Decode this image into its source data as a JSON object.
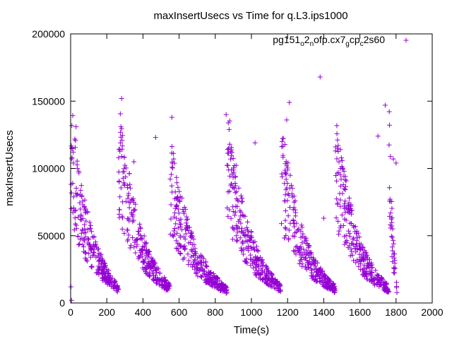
{
  "chart_data": {
    "type": "scatter",
    "title": "maxInsertUsecs vs Time for q.L3.ips1000",
    "xlabel": "Time(s)",
    "ylabel": "maxInsertUsecs",
    "xlim": [
      0,
      2000
    ],
    "ylim": [
      0,
      200000
    ],
    "xticks": [
      0,
      200,
      400,
      600,
      800,
      1000,
      1200,
      1400,
      1600,
      1800,
      2000
    ],
    "yticks": [
      0,
      50000,
      100000,
      150000,
      200000
    ],
    "xtick_labels": [
      "0",
      "200",
      "400",
      "600",
      "800",
      "1000",
      "1200",
      "1400",
      "1600",
      "1800",
      "2000"
    ],
    "ytick_labels": [
      "0",
      "50000",
      "100000",
      "150000",
      "200000"
    ],
    "legend_position": "top-right",
    "marker": "+",
    "color": "#9400d3",
    "series": [
      {
        "name": "pg151_o2_nofp.cx7_gcp_c2s60",
        "name_parts": [
          {
            "text": "pg151",
            "sub": false
          },
          {
            "text": "o",
            "sub": true
          },
          {
            "text": "2",
            "sub": false
          },
          {
            "text": "n",
            "sub": true
          },
          {
            "text": "ofp.cx7",
            "sub": false
          },
          {
            "text": "g",
            "sub": true
          },
          {
            "text": "cp",
            "sub": false
          },
          {
            "text": "c",
            "sub": true
          },
          {
            "text": "2s60",
            "sub": false
          }
        ],
        "cycles": [
          {
            "start": 0,
            "end": 265,
            "peak": 85000,
            "floor": 18000
          },
          {
            "start": 265,
            "end": 550,
            "peak": 92000,
            "floor": 15000
          },
          {
            "start": 550,
            "end": 865,
            "peak": 75000,
            "floor": 12000
          },
          {
            "start": 865,
            "end": 1165,
            "peak": 90000,
            "floor": 12000
          },
          {
            "start": 1165,
            "end": 1465,
            "peak": 82000,
            "floor": 12000
          },
          {
            "start": 1465,
            "end": 1760,
            "peak": 88000,
            "floor": 10000
          },
          {
            "start": 1760,
            "end": 1805,
            "peak": 70000,
            "floor": 40000
          }
        ],
        "outliers": [
          {
            "x": 8,
            "y": 108000
          },
          {
            "x": 15,
            "y": 104000
          },
          {
            "x": 30,
            "y": 131000
          },
          {
            "x": 282,
            "y": 152000
          },
          {
            "x": 278,
            "y": 131000
          },
          {
            "x": 275,
            "y": 119000
          },
          {
            "x": 350,
            "y": 105000
          },
          {
            "x": 470,
            "y": 123000
          },
          {
            "x": 560,
            "y": 138000
          },
          {
            "x": 570,
            "y": 107000
          },
          {
            "x": 860,
            "y": 140000
          },
          {
            "x": 880,
            "y": 118000
          },
          {
            "x": 1020,
            "y": 119000
          },
          {
            "x": 1195,
            "y": 136000
          },
          {
            "x": 1210,
            "y": 149000
          },
          {
            "x": 1185,
            "y": 97000
          },
          {
            "x": 1168,
            "y": 96000
          },
          {
            "x": 1465,
            "y": 113000
          },
          {
            "x": 1480,
            "y": 117000
          },
          {
            "x": 1700,
            "y": 124000
          },
          {
            "x": 1740,
            "y": 147000
          },
          {
            "x": 1785,
            "y": 107000
          },
          {
            "x": 1800,
            "y": 104000
          },
          {
            "x": 1380,
            "y": 168000
          },
          {
            "x": 1400,
            "y": 63000
          },
          {
            "x": 5,
            "y": 2000
          },
          {
            "x": 2,
            "y": 12000
          }
        ]
      }
    ]
  }
}
